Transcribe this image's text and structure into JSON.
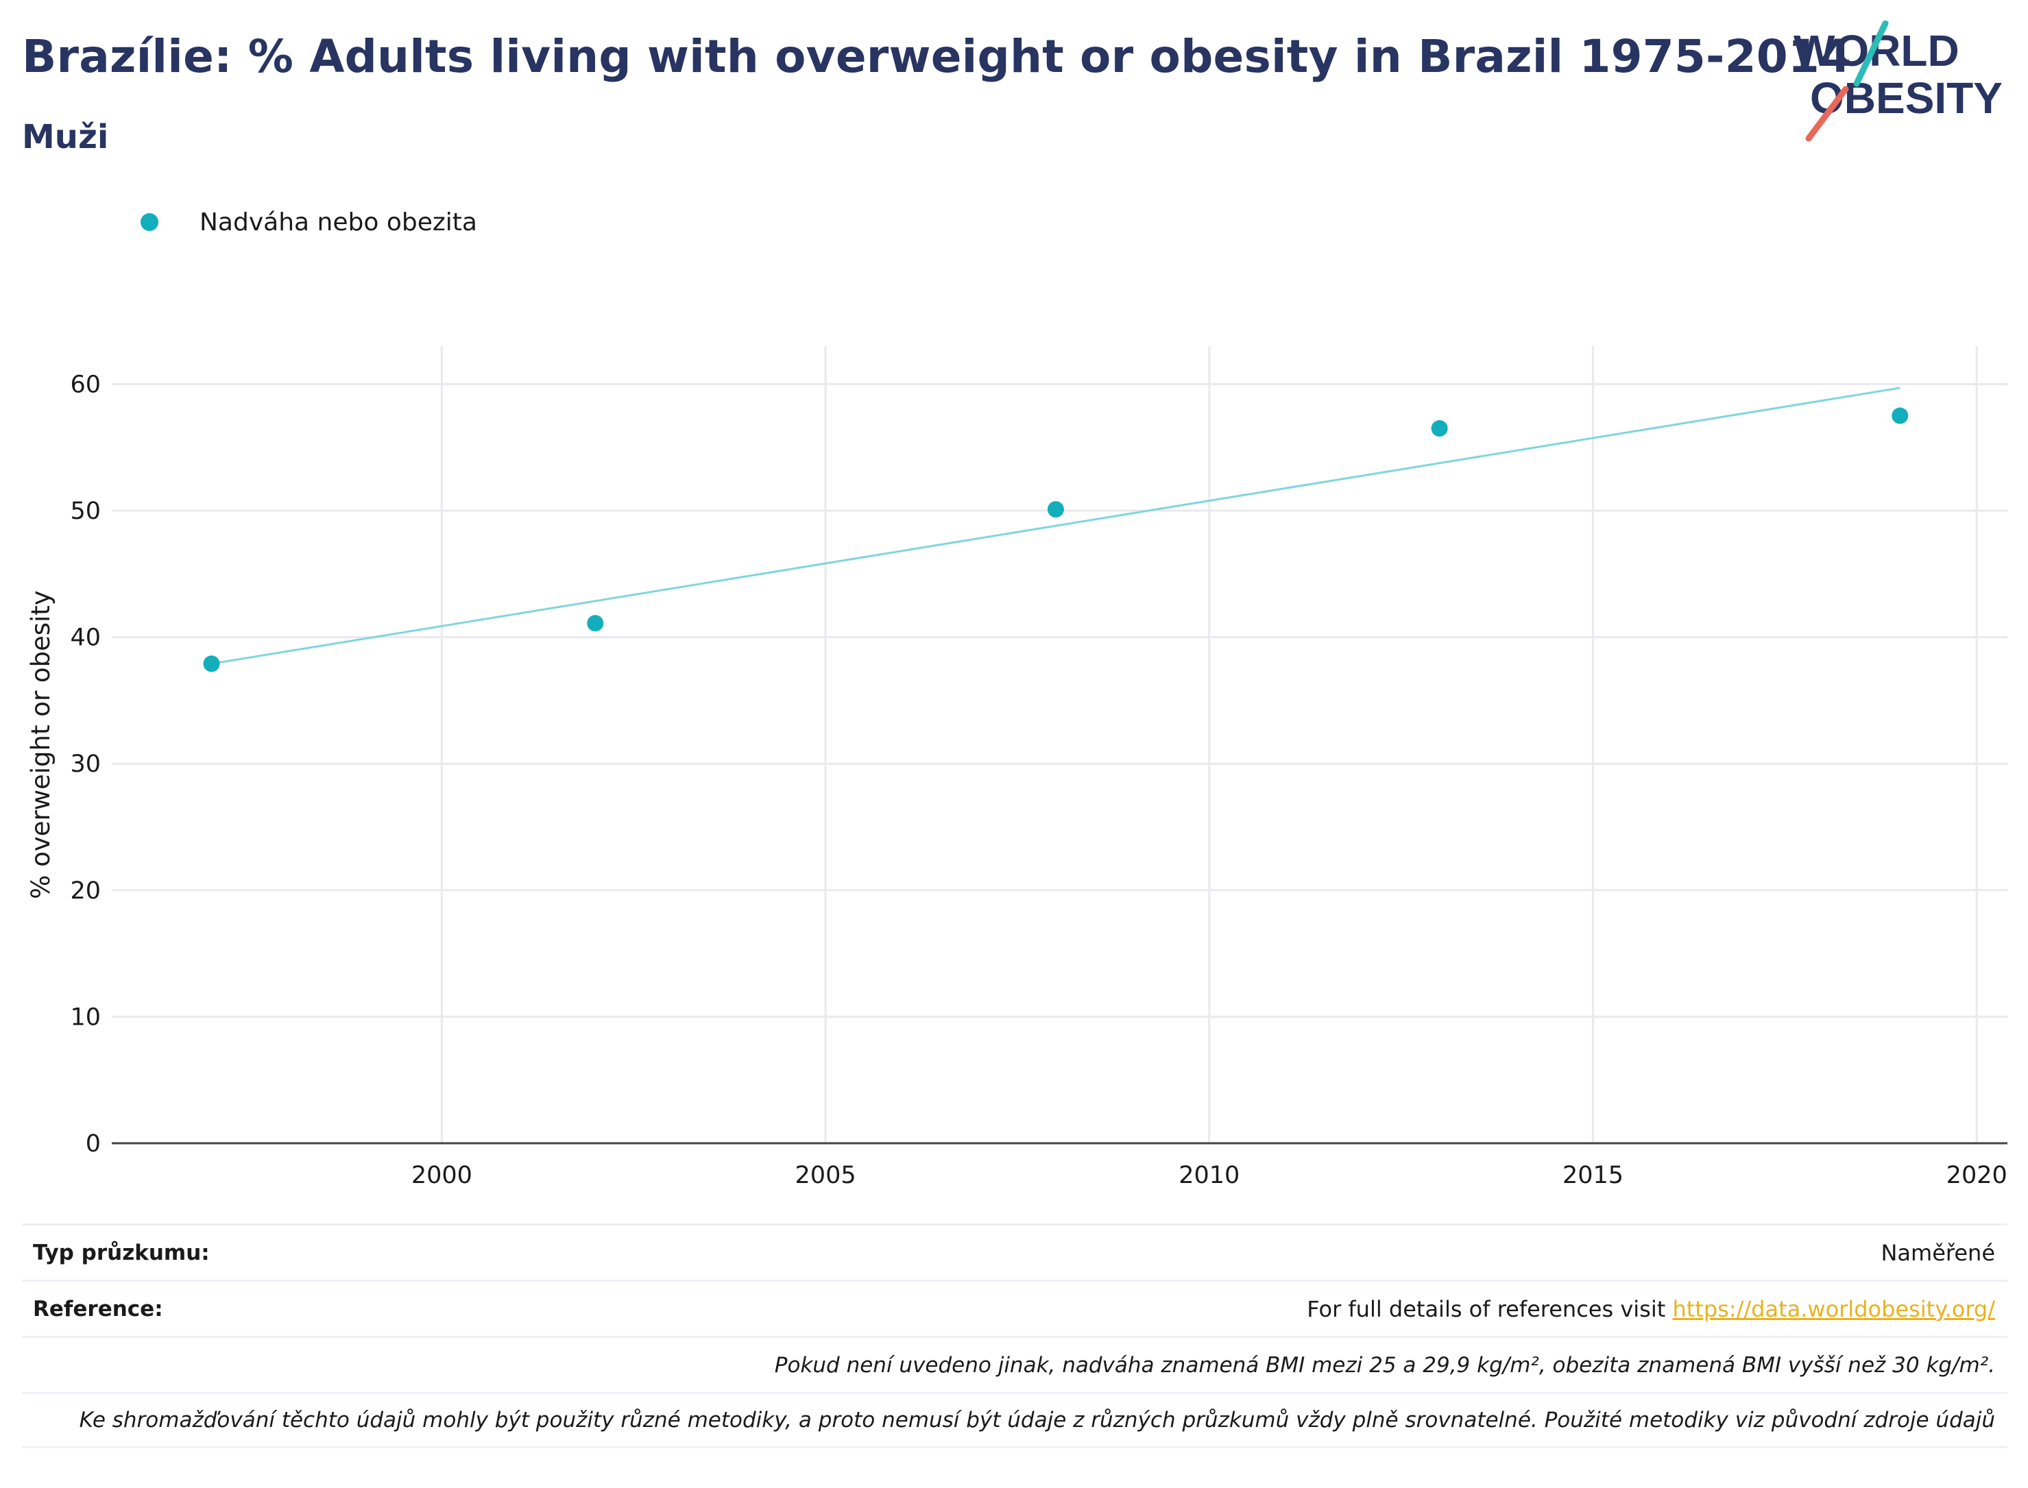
{
  "header": {
    "title": "Brazílie: % Adults living with overweight or obesity in Brazil 1975-2014",
    "subtitle": "Muži"
  },
  "logo": {
    "line1": "WORLD",
    "line2": "OBESITY",
    "text_color": "#283461",
    "slash_top_color": "#2bbcb7",
    "slash_bottom_color": "#e8685a"
  },
  "legend": {
    "label": "Nadváha nebo obezita",
    "color": "#12aebc"
  },
  "chart_data": {
    "type": "scatter",
    "title": "",
    "xlabel": "",
    "ylabel": "% overweight or obesity",
    "xlim": [
      1995.7,
      2020.4
    ],
    "ylim": [
      0,
      63
    ],
    "x_ticks": [
      2000,
      2005,
      2010,
      2015,
      2020
    ],
    "y_ticks": [
      0,
      10,
      20,
      30,
      40,
      50,
      60
    ],
    "grid": true,
    "legend_position": "top-left",
    "series": [
      {
        "name": "Nadváha nebo obezita",
        "color": "#12aebc",
        "x": [
          1997,
          2002,
          2008,
          2013,
          2019
        ],
        "y": [
          37.9,
          41.1,
          50.1,
          56.5,
          57.5
        ]
      }
    ],
    "trendline": {
      "color": "#7fd6dd",
      "x": [
        1997,
        2019
      ],
      "y": [
        37.9,
        59.7
      ]
    }
  },
  "table": {
    "survey_type_label": "Typ průzkumu:",
    "survey_type_value": "Naměřené",
    "reference_label": "Reference:",
    "reference_text": "For full details of references visit ",
    "reference_link": "https://data.worldobesity.org/",
    "note1": "Pokud není uvedeno jinak, nadváha znamená BMI mezi 25 a 29,9 kg/m², obezita znamená BMI vyšší než 30 kg/m².",
    "note2": "Ke shromažďování těchto údajů mohly být použity různé metodiky, a proto nemusí být údaje z různých průzkumů vždy plně srovnatelné. Použité metodiky viz původní zdroje údajů"
  }
}
